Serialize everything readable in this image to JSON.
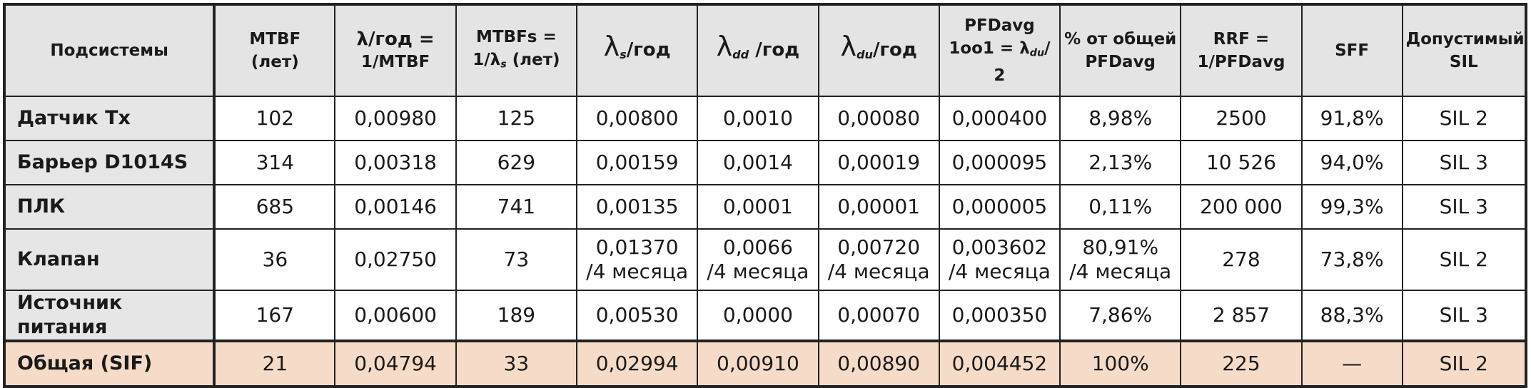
{
  "table": {
    "headers": [
      {
        "id": "subsystems",
        "lines": [
          "Подсистемы"
        ]
      },
      {
        "id": "mtbf",
        "lines": [
          "MTBF",
          "(лет)"
        ]
      },
      {
        "id": "lambda",
        "lines": [
          "λ/год =",
          "1/MTBF"
        ]
      },
      {
        "id": "mtbfs",
        "lines": [
          "MTBFs =",
          "1/λ",
          "s",
          " (лет)"
        ]
      },
      {
        "id": "lambda_s",
        "lines": [
          "λ",
          "s",
          "/год"
        ]
      },
      {
        "id": "lambda_dd",
        "lines": [
          "λ",
          "dd",
          " /год"
        ]
      },
      {
        "id": "lambda_du",
        "lines": [
          "λ",
          "du",
          "/год"
        ]
      },
      {
        "id": "pfdavg",
        "lines": [
          "PFDavg",
          "1oo1 = λ",
          "du",
          "/",
          "2"
        ]
      },
      {
        "id": "pct",
        "lines": [
          "% от общей",
          "PFDavg"
        ]
      },
      {
        "id": "rrf",
        "lines": [
          "RRF =",
          "1/PFDavg"
        ]
      },
      {
        "id": "sff",
        "lines": [
          "SFF"
        ]
      },
      {
        "id": "sil",
        "lines": [
          "Допустимый",
          "SIL"
        ]
      }
    ],
    "rows": [
      {
        "name": "Датчик Tx",
        "cells": [
          "102",
          "0,00980",
          "125",
          "0,00800",
          "0,0010",
          "0,00080",
          "0,000400",
          "8,98%",
          "2500",
          "91,8%",
          "SIL 2"
        ]
      },
      {
        "name": "Барьер D1014S",
        "cells": [
          "314",
          "0,00318",
          "629",
          "0,00159",
          "0,0014",
          "0,00019",
          "0,000095",
          "2,13%",
          "10 526",
          "94,0%",
          "SIL 3"
        ]
      },
      {
        "name": "ПЛК",
        "cells": [
          "685",
          "0,00146",
          "741",
          "0,00135",
          "0,0001",
          "0,00001",
          "0,000005",
          "0,11%",
          "200 000",
          "99,3%",
          "SIL 3"
        ]
      },
      {
        "name": "Клапан",
        "cells": [
          "36",
          "0,02750",
          "73",
          "0,01370\n/4 месяца",
          "0,0066\n/4 месяца",
          "0,00720\n/4 месяца",
          "0,003602\n/4 месяца",
          "80,91%\n/4 месяца",
          "278",
          "73,8%",
          "SIL 2"
        ]
      },
      {
        "name": "Источник питания",
        "cells": [
          "167",
          "0,00600",
          "189",
          "0,00530",
          "0,0000",
          "0,00070",
          "0,000350",
          "7,86%",
          "2 857",
          "88,3%",
          "SIL 3"
        ]
      },
      {
        "name": "Общая (SIF)",
        "cells": [
          "21",
          "0,04794",
          "33",
          "0,02994",
          "0,00910",
          "0,00890",
          "0,004452",
          "100%",
          "225",
          "—",
          "SIL 2"
        ]
      }
    ]
  }
}
